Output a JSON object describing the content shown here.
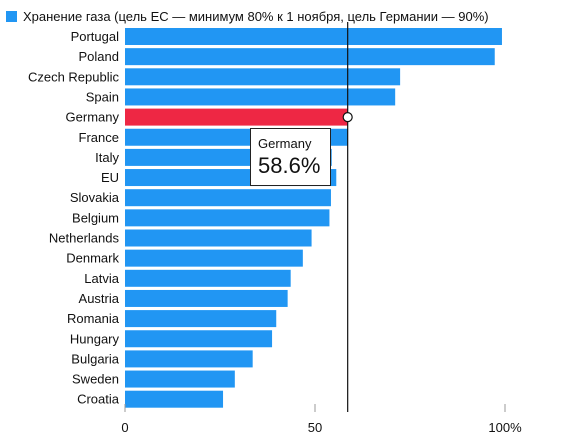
{
  "legend": {
    "text": "Хранение газа (цель ЕС — минимум 80% к 1 ноября, цель Германии — 90%)",
    "color": "#2196f3"
  },
  "tooltip": {
    "name": "Germany",
    "value": "58.6%"
  },
  "chart_data": {
    "type": "bar",
    "orientation": "horizontal",
    "series": [
      {
        "name": "Хранение газа (цель ЕС — минимум 80% к 1 ноября, цель Германии — 90%)",
        "values": [
          99.2,
          97.3,
          72.4,
          71.1,
          58.6,
          58.6,
          54.4,
          55.6,
          54.2,
          53.8,
          49.1,
          46.8,
          43.6,
          42.8,
          39.8,
          38.7,
          33.6,
          28.9,
          25.8
        ]
      }
    ],
    "categories": [
      "Portugal",
      "Poland",
      "Czech Republic",
      "Spain",
      "Germany",
      "France",
      "Italy",
      "EU",
      "Slovakia",
      "Belgium",
      "Netherlands",
      "Denmark",
      "Latvia",
      "Austria",
      "Romania",
      "Hungary",
      "Bulgaria",
      "Sweden",
      "Croatia"
    ],
    "highlight": {
      "category": "Germany",
      "color": "#ee2744"
    },
    "reference_line": {
      "value": 58.6
    },
    "xlim": [
      0,
      100
    ],
    "xticks": [
      0,
      50,
      100
    ],
    "xtick_labels": [
      "0",
      "50",
      "100%"
    ],
    "bar_color": "#2196f3",
    "grid": false
  }
}
